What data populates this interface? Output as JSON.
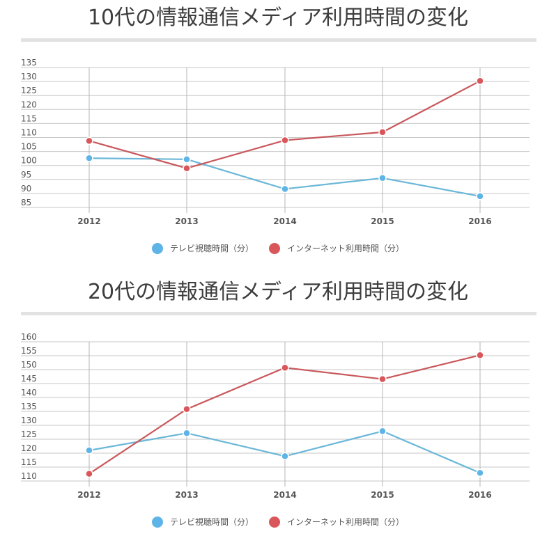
{
  "colors": {
    "tv": "#6ab7d8",
    "tv_dot": "#5eb4e6",
    "internet": "#c9585c",
    "internet_dot": "#d9575b",
    "grid": "#c7c7c7",
    "rule": "#e2e2e2"
  },
  "legend": {
    "tv": "テレビ視聴時間（分）",
    "internet": "インターネット利用時間（分）"
  },
  "chart_data": [
    {
      "type": "line",
      "title": "10代の情報通信メディア利用時間の変化",
      "categories": [
        "2012",
        "2013",
        "2014",
        "2015",
        "2016"
      ],
      "ylim": [
        85,
        135
      ],
      "yticks": [
        85,
        90,
        95,
        100,
        105,
        110,
        115,
        120,
        125,
        130,
        135
      ],
      "grid": true,
      "legend_position": "bottom",
      "series": [
        {
          "name": "テレビ視聴時間（分）",
          "key": "tv",
          "values": [
            102.6,
            102.2,
            91.6,
            95.5,
            89.0
          ]
        },
        {
          "name": "インターネット利用時間（分）",
          "key": "internet",
          "values": [
            108.8,
            99.0,
            109.0,
            111.9,
            130.2
          ]
        }
      ]
    },
    {
      "type": "line",
      "title": "20代の情報通信メディア利用時間の変化",
      "categories": [
        "2012",
        "2013",
        "2014",
        "2015",
        "2016"
      ],
      "ylim": [
        110,
        160
      ],
      "yticks": [
        110,
        115,
        120,
        125,
        130,
        135,
        140,
        145,
        150,
        155,
        160
      ],
      "grid": true,
      "legend_position": "bottom",
      "series": [
        {
          "name": "テレビ視聴時間（分）",
          "key": "tv",
          "values": [
            121.0,
            127.2,
            118.9,
            127.9,
            112.9
          ]
        },
        {
          "name": "インターネット利用時間（分）",
          "key": "internet",
          "values": [
            112.6,
            135.8,
            150.7,
            146.6,
            155.2
          ]
        }
      ]
    }
  ]
}
